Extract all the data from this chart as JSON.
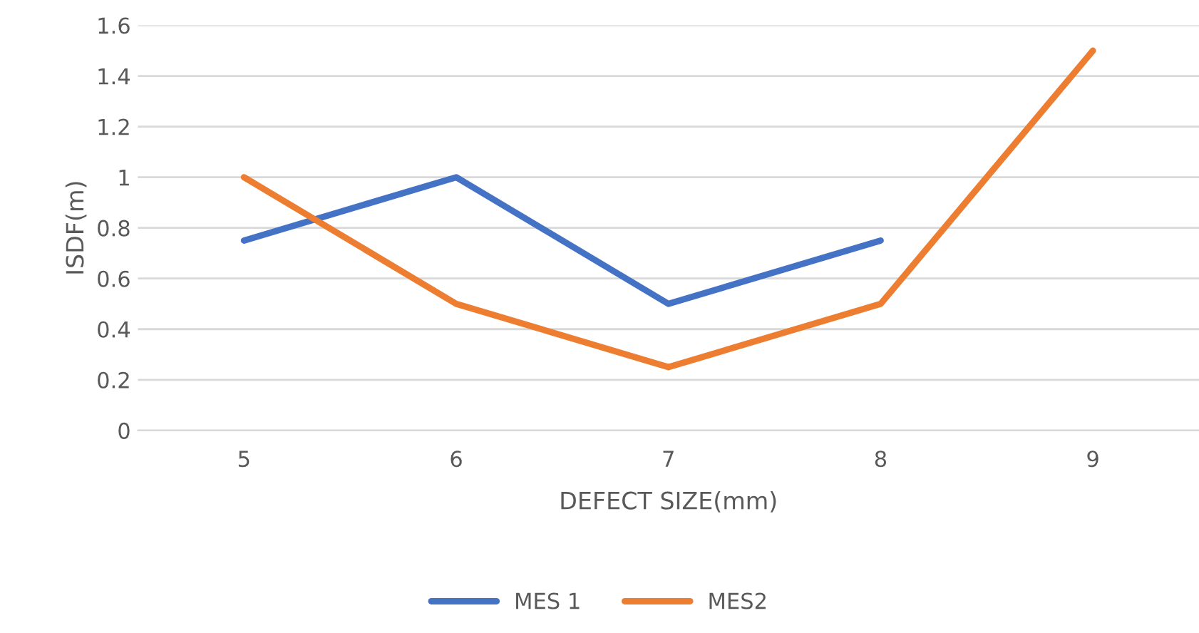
{
  "chart_data": {
    "type": "line",
    "xlabel": "DEFECT SIZE(mm)",
    "ylabel": "ISDF(m)",
    "categories": [
      "5",
      "6",
      "7",
      "8",
      "9"
    ],
    "series": [
      {
        "name": "MES 1",
        "color": "#4472c4",
        "values": [
          0.75,
          1,
          0.5,
          0.75,
          null
        ]
      },
      {
        "name": "MES2",
        "color": "#ed7d31",
        "values": [
          1,
          0.5,
          0.25,
          0.5,
          1.5
        ]
      }
    ],
    "ylim": [
      0,
      1.6
    ],
    "yticks": [
      0,
      0.2,
      0.4,
      0.6,
      0.8,
      1,
      1.2,
      1.4,
      1.6
    ],
    "grid": "y",
    "legend": "bottom",
    "line_style": "solid",
    "marker": "none"
  }
}
